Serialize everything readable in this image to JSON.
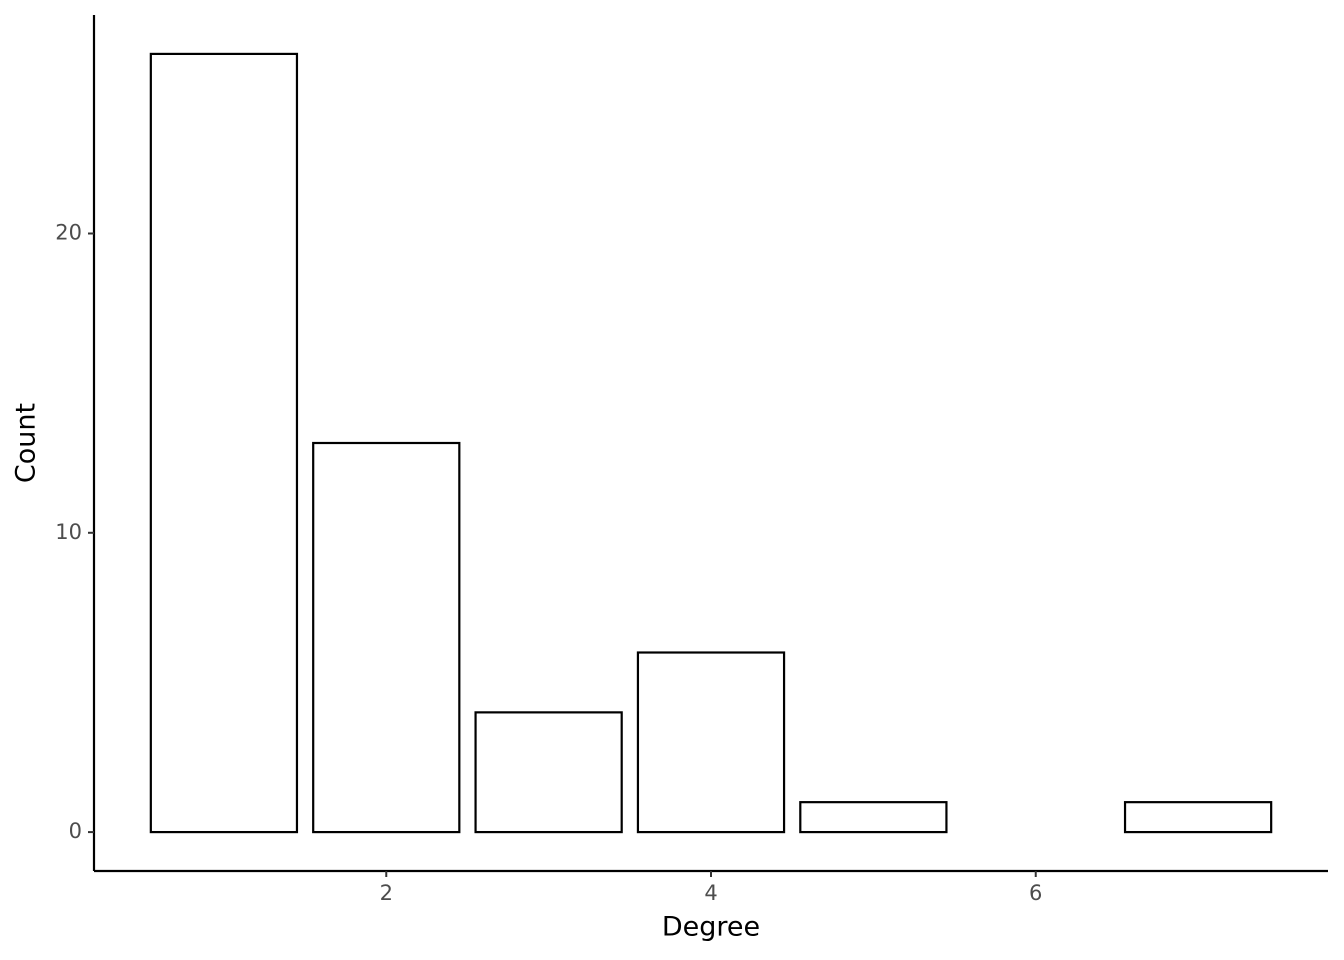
{
  "chart_data": {
    "type": "bar",
    "x_label": "Degree",
    "y_label": "Count",
    "x": [
      1,
      2,
      3,
      4,
      5,
      7
    ],
    "values": [
      26,
      13,
      4,
      6,
      1,
      1
    ],
    "color": "#ffffff",
    "edge_color": "#000000",
    "xlim": [
      0.2,
      7.8
    ],
    "xticks": [
      2,
      4,
      6
    ],
    "ylim": [
      -1.3,
      27.3
    ],
    "yticks": [
      0,
      10,
      20
    ],
    "grid": false
  }
}
